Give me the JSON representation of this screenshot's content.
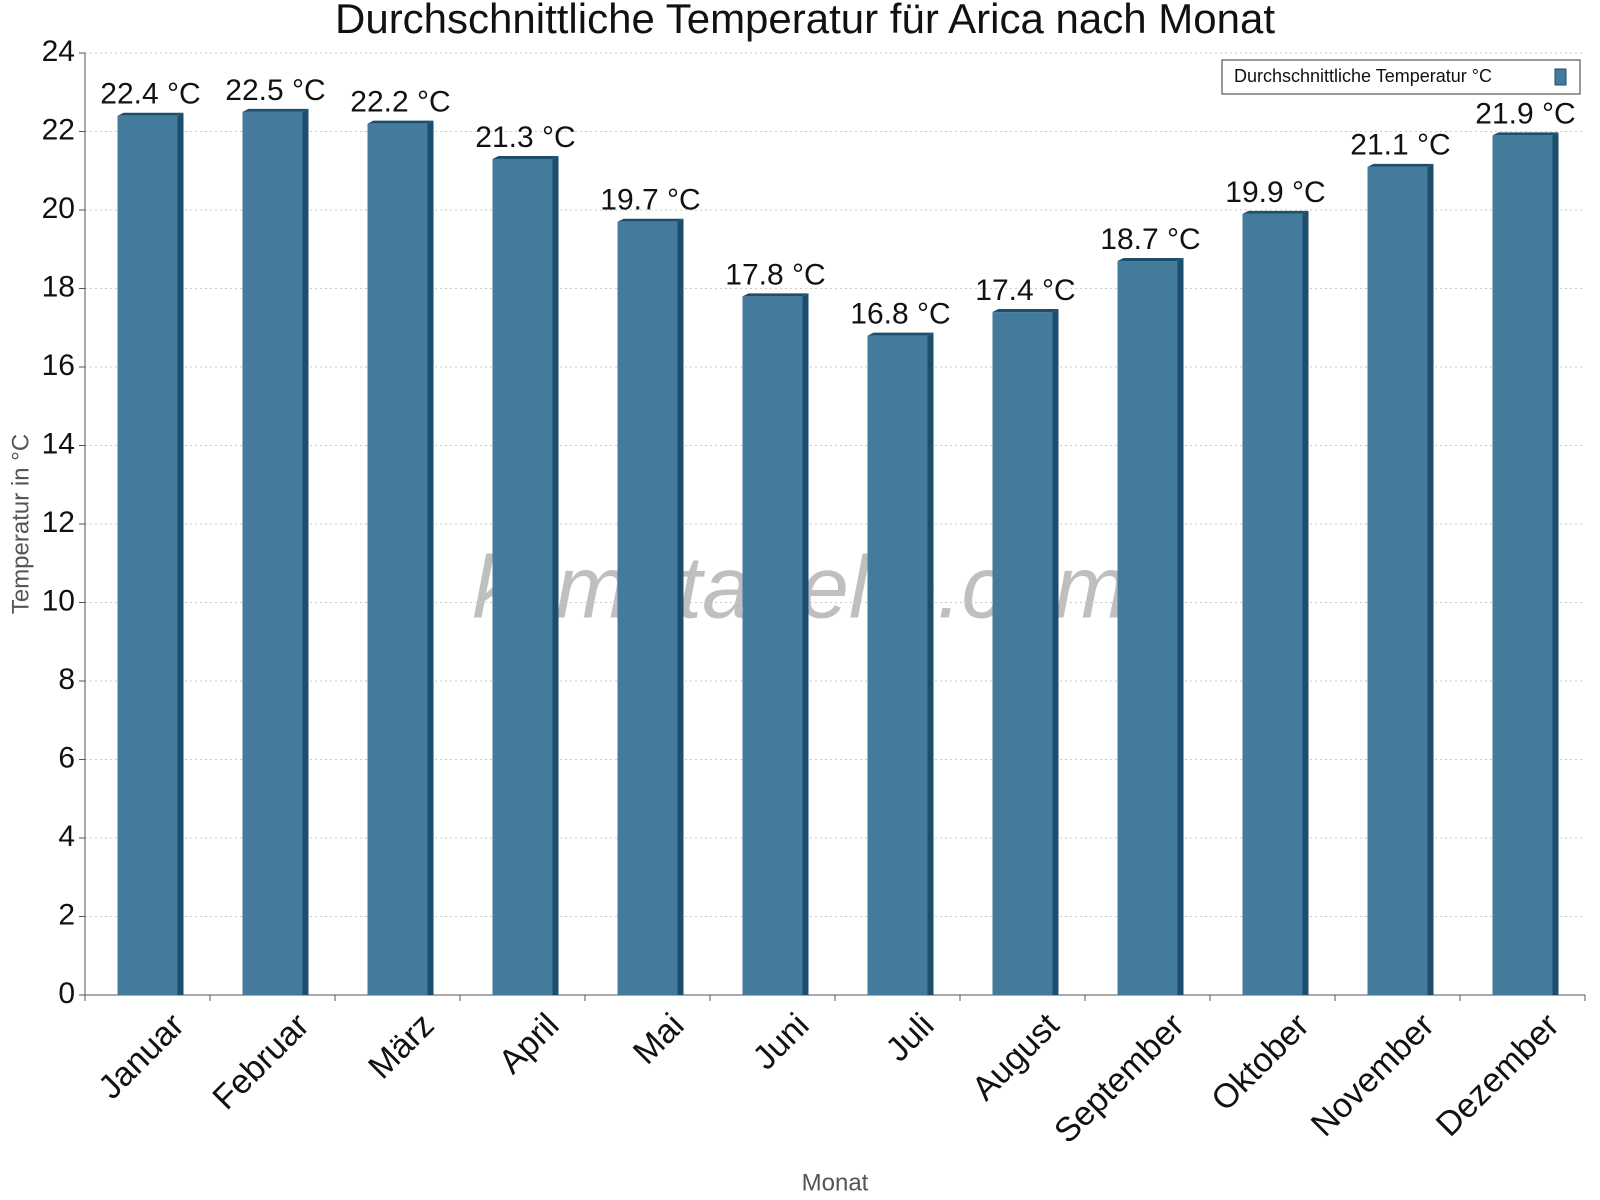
{
  "chart_data": {
    "type": "bar",
    "title": "Durchschnittliche Temperatur für Arica nach Monat",
    "x_label": "Monat",
    "y_label": "Temperatur in °C",
    "watermark": "klimatabelle.com",
    "categories": [
      "Januar",
      "Februar",
      "März",
      "April",
      "Mai",
      "Juni",
      "Juli",
      "August",
      "September",
      "Oktober",
      "November",
      "Dezember"
    ],
    "series": [
      {
        "name": "Durchschnittliche Temperatur °C",
        "color": "#447a9c",
        "values": [
          22.4,
          22.5,
          22.2,
          21.3,
          19.7,
          17.8,
          16.8,
          17.4,
          18.7,
          19.9,
          21.1,
          21.9
        ],
        "value_labels": [
          "22.4 °C",
          "22.5 °C",
          "22.2 °C",
          "21.3 °C",
          "19.7 °C",
          "17.8 °C",
          "16.8 °C",
          "17.4 °C",
          "18.7 °C",
          "19.9 °C",
          "21.1 °C",
          "21.9 °C"
        ]
      }
    ],
    "ylim": [
      0,
      24
    ],
    "yticks": [
      0,
      2,
      4,
      6,
      8,
      10,
      12,
      14,
      16,
      18,
      20,
      22,
      24
    ],
    "grid": true,
    "legend": "top-right"
  }
}
